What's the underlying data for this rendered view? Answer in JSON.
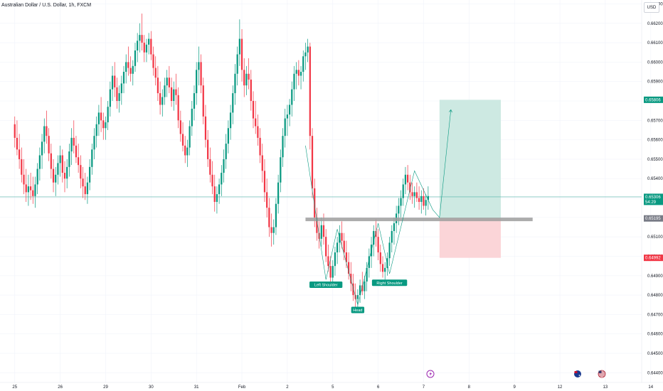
{
  "header": {
    "title": "Australian Dollar / U.S. Dollar, 1h, FXCM",
    "currency": "USD"
  },
  "colors": {
    "up": "#089981",
    "down": "#f23645",
    "target_zone": "#cde9e2",
    "stop_zone": "#fbd5d8",
    "target_tag": "#089981",
    "stop_tag": "#f23645",
    "level_tag": "#787b86",
    "price_tag": "#089981",
    "pattern_label": "#089981",
    "neckline": "#9e9e9e",
    "price_line": "#52b3a8",
    "grid": "#f0f3fa",
    "pattern_line": "#089981"
  },
  "chart_data": {
    "type": "candlestick",
    "title": "Australian Dollar / U.S. Dollar, 1h, FXCM",
    "y_axis": {
      "ylim": [
        0.6435,
        0.6632
      ],
      "ticks": [
        "0.66300",
        "0.66200",
        "0.66100",
        "0.66000",
        "0.65900",
        "0.65800",
        "0.65700",
        "0.65600",
        "0.65500",
        "0.65400",
        "0.65300",
        "0.65200",
        "0.65100",
        "0.65000",
        "0.64900",
        "0.64800",
        "0.64700",
        "0.64600",
        "0.64500",
        "0.64400"
      ]
    },
    "x_axis": {
      "ticks": [
        "25",
        "26",
        "29",
        "30",
        "31",
        "Feb",
        "2",
        "5",
        "6",
        "7",
        "8",
        "9",
        "12",
        "13",
        "14"
      ],
      "bar_index": [
        0,
        20,
        40,
        60,
        80,
        100,
        120,
        140,
        160,
        180,
        200,
        220,
        240,
        260,
        280
      ],
      "xlim_bars": [
        -6.5,
        276
      ]
    },
    "price_labels": {
      "target": "0.65806",
      "current": "0.65306",
      "countdown": "54:29",
      "entry": "0.65195",
      "stop": "0.64992"
    },
    "position": {
      "entry": 0.65195,
      "target": 0.65806,
      "stop": 0.64992,
      "start_bar": 187,
      "end_bar": 214
    },
    "neckline": {
      "value": 0.6519,
      "start_bar": 128,
      "end_bar": 228
    },
    "current_price": 0.65306,
    "pattern_labels": [
      {
        "text": "Left Shoulder",
        "bar": 137,
        "value": 0.6487
      },
      {
        "text": "Head",
        "bar": 151,
        "value": 0.6474
      },
      {
        "text": "Right Shoulder",
        "bar": 165,
        "value": 0.6488
      }
    ],
    "pattern_path": [
      [
        128,
        0.6557
      ],
      [
        137,
        0.6488
      ],
      [
        142,
        0.6514
      ],
      [
        151,
        0.6475
      ],
      [
        160,
        0.6517
      ],
      [
        165,
        0.6491
      ],
      [
        176,
        0.6544
      ],
      [
        184,
        0.6524
      ],
      [
        187,
        0.652
      ],
      [
        192,
        0.65755
      ]
    ],
    "events": [
      "economic-event-icon",
      "australia-flag-icon",
      "united-states-flag-icon"
    ],
    "ohlc": [
      [
        0.6568,
        0.6572,
        0.6556,
        0.6561
      ],
      [
        0.6561,
        0.657,
        0.6552,
        0.6555
      ],
      [
        0.6555,
        0.6563,
        0.6545,
        0.655
      ],
      [
        0.655,
        0.6556,
        0.6538,
        0.6542
      ],
      [
        0.6542,
        0.655,
        0.6532,
        0.6537
      ],
      [
        0.6537,
        0.6545,
        0.6528,
        0.6533
      ],
      [
        0.6533,
        0.6542,
        0.6526,
        0.6536
      ],
      [
        0.6536,
        0.6543,
        0.6529,
        0.6534
      ],
      [
        0.6534,
        0.6541,
        0.6527,
        0.6531
      ],
      [
        0.6531,
        0.6541,
        0.6525,
        0.6537
      ],
      [
        0.6537,
        0.6548,
        0.6532,
        0.6545
      ],
      [
        0.6545,
        0.6556,
        0.6539,
        0.6552
      ],
      [
        0.6552,
        0.6563,
        0.6545,
        0.6559
      ],
      [
        0.6559,
        0.6571,
        0.6553,
        0.6567
      ],
      [
        0.6567,
        0.6575,
        0.6558,
        0.6562
      ],
      [
        0.6562,
        0.6566,
        0.6549,
        0.6553
      ],
      [
        0.6553,
        0.6558,
        0.654,
        0.6545
      ],
      [
        0.6545,
        0.655,
        0.6533,
        0.6538
      ],
      [
        0.6538,
        0.6546,
        0.6531,
        0.6542
      ],
      [
        0.6542,
        0.6552,
        0.6537,
        0.6548
      ],
      [
        0.6548,
        0.6557,
        0.6541,
        0.6552
      ],
      [
        0.6552,
        0.6555,
        0.6538,
        0.6543
      ],
      [
        0.6543,
        0.6549,
        0.6533,
        0.654
      ],
      [
        0.654,
        0.655,
        0.6535,
        0.6546
      ],
      [
        0.6546,
        0.6558,
        0.6541,
        0.6554
      ],
      [
        0.6554,
        0.6566,
        0.6547,
        0.6561
      ],
      [
        0.6561,
        0.657,
        0.6553,
        0.6557
      ],
      [
        0.6557,
        0.6562,
        0.6548,
        0.6551
      ],
      [
        0.6551,
        0.6558,
        0.6543,
        0.6547
      ],
      [
        0.6547,
        0.6552,
        0.6535,
        0.654
      ],
      [
        0.654,
        0.6546,
        0.653,
        0.6536
      ],
      [
        0.6536,
        0.6543,
        0.6529,
        0.6532
      ],
      [
        0.6532,
        0.6541,
        0.6527,
        0.6538
      ],
      [
        0.6538,
        0.655,
        0.6534,
        0.6546
      ],
      [
        0.6546,
        0.6558,
        0.6542,
        0.6555
      ],
      [
        0.6555,
        0.6566,
        0.655,
        0.6562
      ],
      [
        0.6562,
        0.6572,
        0.6556,
        0.6568
      ],
      [
        0.6568,
        0.6578,
        0.6562,
        0.6574
      ],
      [
        0.6574,
        0.6582,
        0.6564,
        0.657
      ],
      [
        0.657,
        0.6574,
        0.656,
        0.6566
      ],
      [
        0.6566,
        0.6572,
        0.656,
        0.6569
      ],
      [
        0.6569,
        0.658,
        0.6565,
        0.6577
      ],
      [
        0.6577,
        0.659,
        0.6572,
        0.6586
      ],
      [
        0.6586,
        0.6598,
        0.658,
        0.6593
      ],
      [
        0.6593,
        0.66,
        0.6582,
        0.6587
      ],
      [
        0.6587,
        0.6592,
        0.6576,
        0.658
      ],
      [
        0.658,
        0.6588,
        0.6574,
        0.6584
      ],
      [
        0.6584,
        0.6593,
        0.6578,
        0.6589
      ],
      [
        0.6589,
        0.6598,
        0.6584,
        0.6595
      ],
      [
        0.6595,
        0.6604,
        0.6589,
        0.66
      ],
      [
        0.66,
        0.6608,
        0.6593,
        0.6597
      ],
      [
        0.6597,
        0.6603,
        0.659,
        0.6594
      ],
      [
        0.6594,
        0.6601,
        0.6588,
        0.6598
      ],
      [
        0.6598,
        0.661,
        0.6595,
        0.6606
      ],
      [
        0.6606,
        0.6615,
        0.66,
        0.6611
      ],
      [
        0.6611,
        0.662,
        0.6605,
        0.6614
      ],
      [
        0.6614,
        0.6625,
        0.6606,
        0.661
      ],
      [
        0.661,
        0.6614,
        0.66,
        0.6605
      ],
      [
        0.6605,
        0.6612,
        0.66,
        0.6609
      ],
      [
        0.6609,
        0.6615,
        0.6604,
        0.6612
      ],
      [
        0.6612,
        0.6616,
        0.6601,
        0.6604
      ],
      [
        0.6604,
        0.6608,
        0.6593,
        0.6597
      ],
      [
        0.6597,
        0.6603,
        0.6588,
        0.6592
      ],
      [
        0.6592,
        0.6598,
        0.658,
        0.6584
      ],
      [
        0.6584,
        0.659,
        0.6573,
        0.6578
      ],
      [
        0.6578,
        0.6586,
        0.6572,
        0.6582
      ],
      [
        0.6582,
        0.6592,
        0.6578,
        0.6588
      ],
      [
        0.6588,
        0.6596,
        0.6582,
        0.6592
      ],
      [
        0.6592,
        0.6598,
        0.6584,
        0.6587
      ],
      [
        0.6587,
        0.6592,
        0.6577,
        0.658
      ],
      [
        0.658,
        0.659,
        0.6575,
        0.6586
      ],
      [
        0.6586,
        0.6594,
        0.6578,
        0.6583
      ],
      [
        0.6583,
        0.6587,
        0.6566,
        0.657
      ],
      [
        0.657,
        0.6575,
        0.6559,
        0.6563
      ],
      [
        0.6563,
        0.6569,
        0.6554,
        0.6557
      ],
      [
        0.6557,
        0.6562,
        0.6548,
        0.6552
      ],
      [
        0.6552,
        0.656,
        0.6546,
        0.6556
      ],
      [
        0.6556,
        0.657,
        0.6552,
        0.6567
      ],
      [
        0.6567,
        0.658,
        0.6562,
        0.6576
      ],
      [
        0.6576,
        0.6588,
        0.657,
        0.6584
      ],
      [
        0.6584,
        0.66,
        0.6578,
        0.6596
      ],
      [
        0.6596,
        0.6608,
        0.6588,
        0.66
      ],
      [
        0.66,
        0.6604,
        0.6584,
        0.6588
      ],
      [
        0.6588,
        0.6592,
        0.6568,
        0.6572
      ],
      [
        0.6572,
        0.6578,
        0.6556,
        0.656
      ],
      [
        0.656,
        0.6565,
        0.6546,
        0.655
      ],
      [
        0.655,
        0.6556,
        0.6538,
        0.6542
      ],
      [
        0.6542,
        0.6549,
        0.6532,
        0.6536
      ],
      [
        0.6536,
        0.6542,
        0.6523,
        0.6528
      ],
      [
        0.6528,
        0.6536,
        0.6522,
        0.6532
      ],
      [
        0.6532,
        0.654,
        0.6527,
        0.6537
      ],
      [
        0.6537,
        0.6547,
        0.6531,
        0.6543
      ],
      [
        0.6543,
        0.6555,
        0.6538,
        0.655
      ],
      [
        0.655,
        0.6563,
        0.6545,
        0.6558
      ],
      [
        0.6558,
        0.657,
        0.6553,
        0.6566
      ],
      [
        0.6566,
        0.6578,
        0.656,
        0.6574
      ],
      [
        0.6574,
        0.6588,
        0.6568,
        0.6584
      ],
      [
        0.6584,
        0.6599,
        0.6578,
        0.6594
      ],
      [
        0.6594,
        0.6608,
        0.6588,
        0.6604
      ],
      [
        0.6604,
        0.6622,
        0.6598,
        0.6612
      ],
      [
        0.6612,
        0.6617,
        0.659,
        0.6596
      ],
      [
        0.6596,
        0.6602,
        0.6582,
        0.6588
      ],
      [
        0.6588,
        0.6598,
        0.6583,
        0.6594
      ],
      [
        0.6594,
        0.6602,
        0.6586,
        0.6591
      ],
      [
        0.6591,
        0.6596,
        0.6575,
        0.658
      ],
      [
        0.658,
        0.6585,
        0.6566,
        0.6571
      ],
      [
        0.6571,
        0.658,
        0.6563,
        0.6567
      ],
      [
        0.6567,
        0.6573,
        0.6557,
        0.6561
      ],
      [
        0.6561,
        0.6566,
        0.6548,
        0.6552
      ],
      [
        0.6552,
        0.6558,
        0.6538,
        0.6544
      ],
      [
        0.6544,
        0.655,
        0.6528,
        0.6533
      ],
      [
        0.6533,
        0.654,
        0.652,
        0.6525
      ],
      [
        0.6525,
        0.653,
        0.651,
        0.6515
      ],
      [
        0.6515,
        0.6522,
        0.6505,
        0.6512
      ],
      [
        0.6512,
        0.6519,
        0.6506,
        0.6515
      ],
      [
        0.6515,
        0.653,
        0.6511,
        0.6527
      ],
      [
        0.6527,
        0.6542,
        0.6522,
        0.6538
      ],
      [
        0.6538,
        0.6555,
        0.6533,
        0.6551
      ],
      [
        0.6551,
        0.6566,
        0.6546,
        0.6562
      ],
      [
        0.6562,
        0.6576,
        0.6556,
        0.6571
      ],
      [
        0.6571,
        0.6578,
        0.6562,
        0.6573
      ],
      [
        0.6573,
        0.6581,
        0.6567,
        0.6578
      ],
      [
        0.6578,
        0.659,
        0.6572,
        0.6586
      ],
      [
        0.6586,
        0.6598,
        0.658,
        0.6594
      ],
      [
        0.6594,
        0.66,
        0.6586,
        0.6596
      ],
      [
        0.6596,
        0.6601,
        0.6588,
        0.6593
      ],
      [
        0.6593,
        0.6598,
        0.6586,
        0.6595
      ],
      [
        0.6595,
        0.6606,
        0.659,
        0.6603
      ],
      [
        0.6603,
        0.661,
        0.6596,
        0.6605
      ],
      [
        0.6605,
        0.6612,
        0.66,
        0.6608
      ],
      [
        0.6608,
        0.661,
        0.6555,
        0.6562
      ],
      [
        0.6562,
        0.6566,
        0.653,
        0.6535
      ],
      [
        0.6535,
        0.654,
        0.6515,
        0.652
      ],
      [
        0.652,
        0.6525,
        0.6508,
        0.6512
      ],
      [
        0.6512,
        0.6518,
        0.6504,
        0.6509
      ],
      [
        0.6509,
        0.652,
        0.6505,
        0.6516
      ],
      [
        0.6516,
        0.6522,
        0.6506,
        0.651
      ],
      [
        0.651,
        0.6514,
        0.6497,
        0.65
      ],
      [
        0.65,
        0.6506,
        0.6492,
        0.6495
      ],
      [
        0.6495,
        0.65,
        0.6486,
        0.6489
      ],
      [
        0.6489,
        0.6498,
        0.6485,
        0.6495
      ],
      [
        0.6495,
        0.6505,
        0.649,
        0.6502
      ],
      [
        0.6502,
        0.651,
        0.6496,
        0.6507
      ],
      [
        0.6507,
        0.6516,
        0.6502,
        0.6512
      ],
      [
        0.6512,
        0.6518,
        0.6504,
        0.6508
      ],
      [
        0.6508,
        0.6512,
        0.6498,
        0.6502
      ],
      [
        0.6502,
        0.6508,
        0.6494,
        0.6497
      ],
      [
        0.6497,
        0.6502,
        0.6488,
        0.6491
      ],
      [
        0.6491,
        0.6497,
        0.6482,
        0.6486
      ],
      [
        0.6486,
        0.6491,
        0.6477,
        0.648
      ],
      [
        0.648,
        0.6486,
        0.6474,
        0.6478
      ],
      [
        0.6478,
        0.6483,
        0.6473,
        0.648
      ],
      [
        0.648,
        0.6488,
        0.6476,
        0.6485
      ],
      [
        0.6485,
        0.6492,
        0.648,
        0.6482
      ],
      [
        0.6482,
        0.649,
        0.6478,
        0.6487
      ],
      [
        0.6487,
        0.6497,
        0.6482,
        0.6494
      ],
      [
        0.6494,
        0.6504,
        0.6489,
        0.65
      ],
      [
        0.65,
        0.651,
        0.6494,
        0.6506
      ],
      [
        0.6506,
        0.6516,
        0.65,
        0.6513
      ],
      [
        0.6513,
        0.6519,
        0.6505,
        0.651
      ],
      [
        0.651,
        0.6514,
        0.6498,
        0.6502
      ],
      [
        0.6502,
        0.6506,
        0.6492,
        0.6496
      ],
      [
        0.6496,
        0.65,
        0.6489,
        0.6492
      ],
      [
        0.6492,
        0.6497,
        0.6488,
        0.6494
      ],
      [
        0.6494,
        0.6502,
        0.649,
        0.6499
      ],
      [
        0.6499,
        0.651,
        0.6495,
        0.6507
      ],
      [
        0.6507,
        0.6516,
        0.6502,
        0.6513
      ],
      [
        0.6513,
        0.652,
        0.6506,
        0.6517
      ],
      [
        0.6517,
        0.6526,
        0.6512,
        0.6522
      ],
      [
        0.6522,
        0.653,
        0.6516,
        0.6526
      ],
      [
        0.6526,
        0.6534,
        0.652,
        0.653
      ],
      [
        0.653,
        0.654,
        0.6526,
        0.6537
      ],
      [
        0.6537,
        0.6546,
        0.6532,
        0.6542
      ],
      [
        0.6542,
        0.6547,
        0.6534,
        0.6538
      ],
      [
        0.6538,
        0.6542,
        0.6529,
        0.6533
      ],
      [
        0.6533,
        0.6538,
        0.6527,
        0.6531
      ],
      [
        0.6531,
        0.6536,
        0.6525,
        0.6533
      ],
      [
        0.6533,
        0.6538,
        0.6528,
        0.653
      ],
      [
        0.653,
        0.6536,
        0.6524,
        0.6528
      ],
      [
        0.6528,
        0.6534,
        0.6522,
        0.6531
      ],
      [
        0.6531,
        0.6535,
        0.6524,
        0.6526
      ],
      [
        0.6526,
        0.6532,
        0.6521,
        0.6529
      ],
      [
        0.6529,
        0.6536,
        0.6524,
        0.6531
      ]
    ]
  }
}
